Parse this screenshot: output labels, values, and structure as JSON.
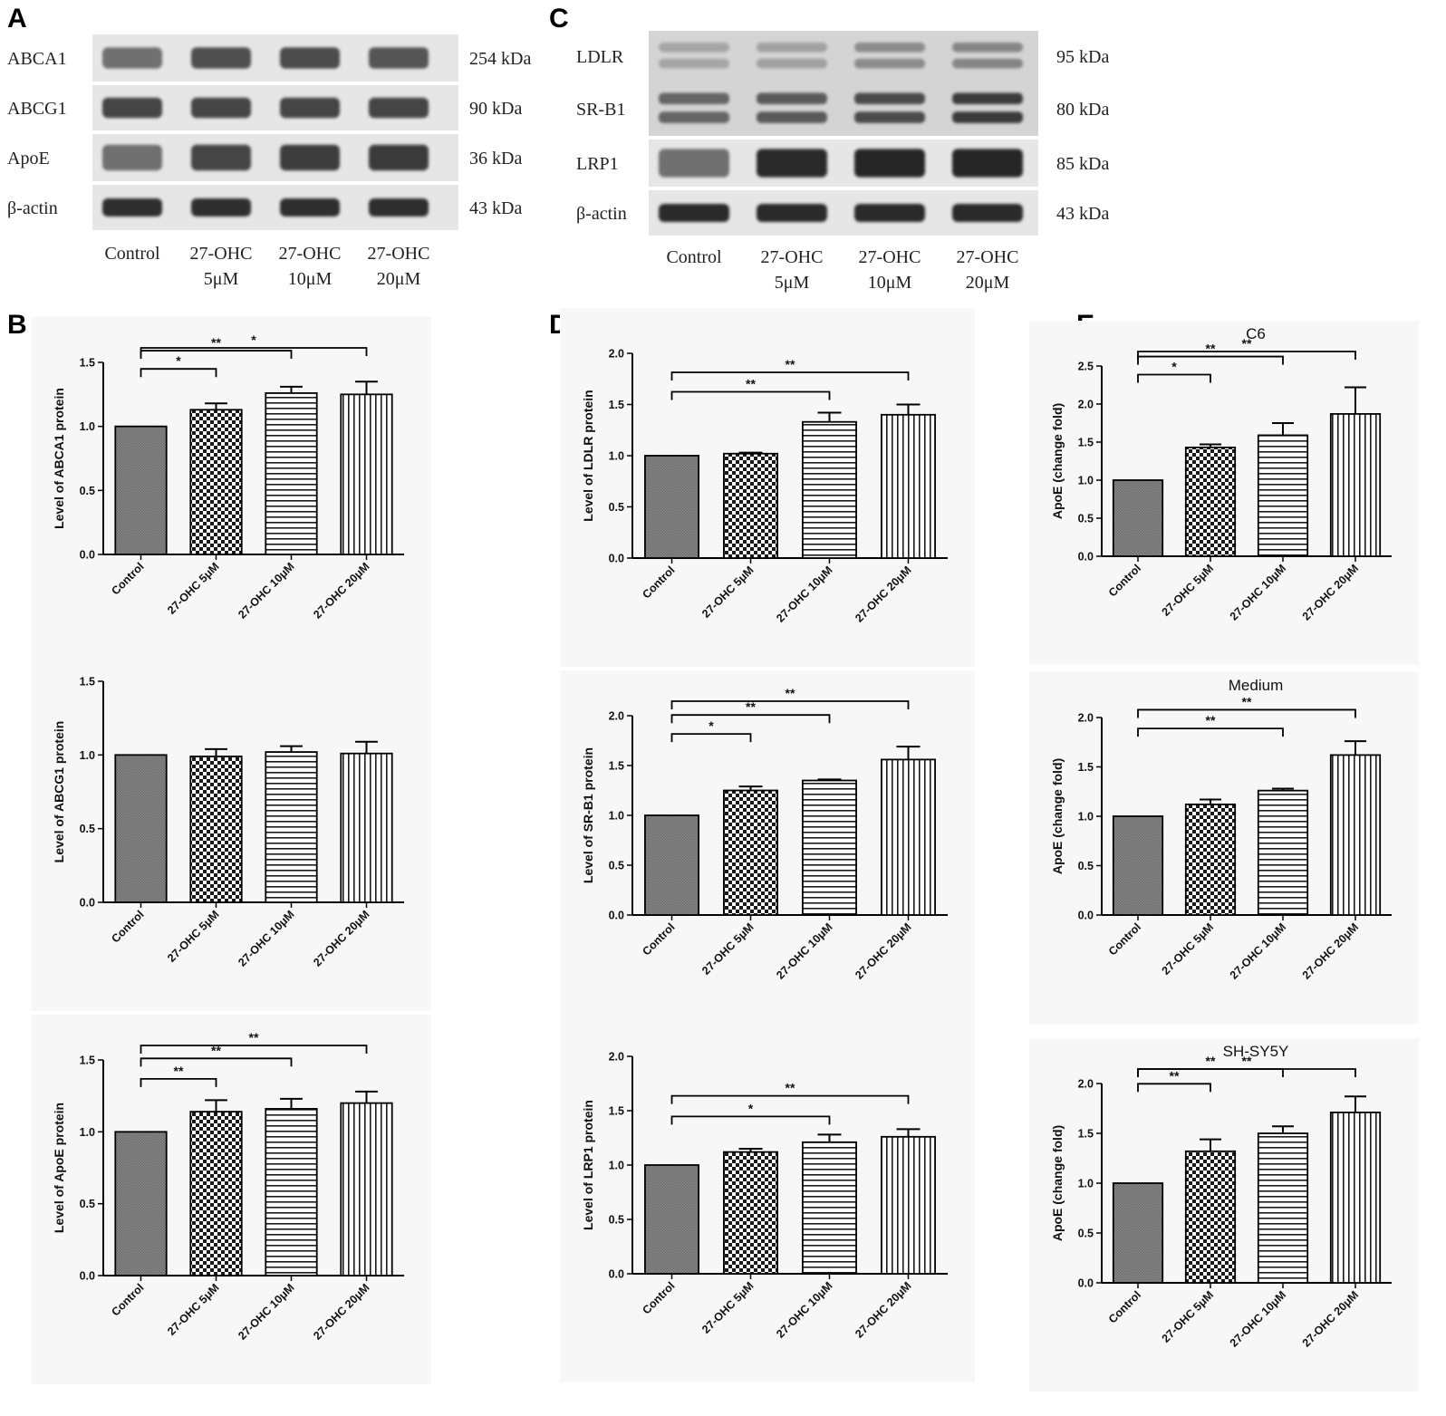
{
  "panel_labels": [
    "A",
    "B",
    "C",
    "D",
    "E"
  ],
  "blots": [
    {
      "label": "A",
      "rows": [
        {
          "name": "ABCA1",
          "size": "254 kDa",
          "intensity": [
            0.55,
            0.7,
            0.72,
            0.68
          ],
          "thickness": 0.45,
          "double": false
        },
        {
          "name": "ABCG1",
          "size": "90 kDa",
          "intensity": [
            0.75,
            0.75,
            0.75,
            0.75
          ],
          "thickness": 0.45,
          "double": false
        },
        {
          "name": "ApoE",
          "size": "36 kDa",
          "intensity": [
            0.55,
            0.75,
            0.78,
            0.8
          ],
          "thickness": 0.55,
          "double": false
        },
        {
          "name": "β-actin",
          "size": "43 kDa",
          "intensity": [
            0.85,
            0.85,
            0.85,
            0.85
          ],
          "thickness": 0.4,
          "double": false
        }
      ],
      "lanes": [
        [
          "Control",
          ""
        ],
        [
          "27-OHC",
          "5μM"
        ],
        [
          "27-OHC",
          "10μM"
        ],
        [
          "27-OHC",
          "20μM"
        ]
      ]
    },
    {
      "label": "C",
      "rows": [
        {
          "name": "LDLR",
          "size": "95 kDa",
          "intensity": [
            0.3,
            0.32,
            0.42,
            0.45
          ],
          "thickness": 0.5,
          "double": true
        },
        {
          "name": "SR-B1",
          "size": "80 kDa",
          "intensity": [
            0.6,
            0.65,
            0.72,
            0.8
          ],
          "thickness": 0.55,
          "double": true
        },
        {
          "name": "LRP1",
          "size": "85 kDa",
          "intensity": [
            0.55,
            0.88,
            0.9,
            0.9
          ],
          "thickness": 0.6,
          "double": false
        },
        {
          "name": "β-actin",
          "size": "43 kDa",
          "intensity": [
            0.88,
            0.88,
            0.88,
            0.88
          ],
          "thickness": 0.4,
          "double": false
        }
      ],
      "lanes": [
        [
          "Control",
          ""
        ],
        [
          "27-OHC",
          "5μM"
        ],
        [
          "27-OHC",
          "10μM"
        ],
        [
          "27-OHC",
          "20μM"
        ]
      ]
    }
  ],
  "chart_data": [
    {
      "panel": "B",
      "type": "bar",
      "title": "",
      "xlabel": "",
      "ylabel": "Level of ABCA1 protein",
      "categories": [
        "Control",
        "27-OHC 5μM",
        "27-OHC 10μM",
        "27-OHC 20μM"
      ],
      "values": [
        1.0,
        1.13,
        1.26,
        1.25
      ],
      "errors": [
        0,
        0.05,
        0.05,
        0.1
      ],
      "ylim": [
        0,
        1.5
      ],
      "yticks": [
        "0.0",
        "0.5",
        "1.0",
        "1.5"
      ],
      "significance": [
        {
          "from": 0,
          "to": 1,
          "label": "*"
        },
        {
          "from": 0,
          "to": 2,
          "label": "**"
        },
        {
          "from": 0,
          "to": 3,
          "label": "*"
        }
      ]
    },
    {
      "panel": "B",
      "type": "bar",
      "title": "",
      "xlabel": "",
      "ylabel": "Level of ABCG1 protein",
      "categories": [
        "Control",
        "27-OHC 5μM",
        "27-OHC 10μM",
        "27-OHC 20μM"
      ],
      "values": [
        1.0,
        0.99,
        1.02,
        1.01
      ],
      "errors": [
        0,
        0.05,
        0.04,
        0.08
      ],
      "ylim": [
        0,
        1.5
      ],
      "yticks": [
        "0.0",
        "0.5",
        "1.0",
        "1.5"
      ],
      "significance": []
    },
    {
      "panel": "B",
      "type": "bar",
      "title": "",
      "xlabel": "",
      "ylabel": "Level of ApoE protein",
      "categories": [
        "Control",
        "27-OHC 5μM",
        "27-OHC 10μM",
        "27-OHC 20μM"
      ],
      "values": [
        1.0,
        1.14,
        1.16,
        1.2
      ],
      "errors": [
        0,
        0.08,
        0.07,
        0.08
      ],
      "ylim": [
        0,
        1.5
      ],
      "yticks": [
        "0.0",
        "0.5",
        "1.0",
        "1.5"
      ],
      "significance": [
        {
          "from": 0,
          "to": 1,
          "label": "**"
        },
        {
          "from": 0,
          "to": 2,
          "label": "**"
        },
        {
          "from": 0,
          "to": 3,
          "label": "**"
        }
      ]
    },
    {
      "panel": "D",
      "type": "bar",
      "title": "",
      "xlabel": "",
      "ylabel": "Level of LDLR protein",
      "categories": [
        "Control",
        "27-OHC 5μM",
        "27-OHC 10μM",
        "27-OHC 20μM"
      ],
      "values": [
        1.0,
        1.02,
        1.33,
        1.4
      ],
      "errors": [
        0,
        0.01,
        0.09,
        0.1
      ],
      "ylim": [
        0,
        2.0
      ],
      "yticks": [
        "0.0",
        "0.5",
        "1.0",
        "1.5",
        "2.0"
      ],
      "significance": [
        {
          "from": 0,
          "to": 2,
          "label": "**"
        },
        {
          "from": 0,
          "to": 3,
          "label": "**"
        }
      ]
    },
    {
      "panel": "D",
      "type": "bar",
      "title": "",
      "xlabel": "",
      "ylabel": "Level of SR-B1 protein",
      "categories": [
        "Control",
        "27-OHC 5μM",
        "27-OHC 10μM",
        "27-OHC 20μM"
      ],
      "values": [
        1.0,
        1.25,
        1.35,
        1.56
      ],
      "errors": [
        0,
        0.04,
        0.01,
        0.13
      ],
      "ylim": [
        0,
        2.0
      ],
      "yticks": [
        "0.0",
        "0.5",
        "1.0",
        "1.5",
        "2.0"
      ],
      "significance": [
        {
          "from": 0,
          "to": 1,
          "label": "*"
        },
        {
          "from": 0,
          "to": 2,
          "label": "**"
        },
        {
          "from": 0,
          "to": 3,
          "label": "**"
        }
      ]
    },
    {
      "panel": "D",
      "type": "bar",
      "title": "",
      "xlabel": "",
      "ylabel": "Level of LRP1 protein",
      "categories": [
        "Control",
        "27-OHC 5μM",
        "27-OHC 10μM",
        "27-OHC 20μM"
      ],
      "values": [
        1.0,
        1.12,
        1.21,
        1.26
      ],
      "errors": [
        0,
        0.03,
        0.07,
        0.07
      ],
      "ylim": [
        0,
        2.0
      ],
      "yticks": [
        "0.0",
        "0.5",
        "1.0",
        "1.5",
        "2.0"
      ],
      "significance": [
        {
          "from": 0,
          "to": 2,
          "label": "*"
        },
        {
          "from": 0,
          "to": 3,
          "label": "**"
        }
      ]
    },
    {
      "panel": "E",
      "type": "bar",
      "title": "C6",
      "xlabel": "",
      "ylabel": "ApoE (change fold)",
      "categories": [
        "Control",
        "27-OHC 5μM",
        "27-OHC 10μM",
        "27-OHC 20μM"
      ],
      "values": [
        1.0,
        1.43,
        1.59,
        1.87
      ],
      "errors": [
        0,
        0.04,
        0.16,
        0.35
      ],
      "ylim": [
        0,
        2.5
      ],
      "yticks": [
        "0.0",
        "0.5",
        "1.0",
        "1.5",
        "2.0",
        "2.5"
      ],
      "significance": [
        {
          "from": 0,
          "to": 1,
          "label": "*"
        },
        {
          "from": 0,
          "to": 2,
          "label": "**"
        },
        {
          "from": 0,
          "to": 3,
          "label": "**"
        }
      ]
    },
    {
      "panel": "E",
      "type": "bar",
      "title": "Medium",
      "xlabel": "",
      "ylabel": "ApoE (change fold)",
      "categories": [
        "Control",
        "27-OHC 5μM",
        "27-OHC 10μM",
        "27-OHC 20μM"
      ],
      "values": [
        1.0,
        1.12,
        1.26,
        1.62
      ],
      "errors": [
        0,
        0.05,
        0.02,
        0.14
      ],
      "ylim": [
        0,
        2.0
      ],
      "yticks": [
        "0.0",
        "0.5",
        "1.0",
        "1.5",
        "2.0"
      ],
      "significance": [
        {
          "from": 0,
          "to": 2,
          "label": "**"
        },
        {
          "from": 0,
          "to": 3,
          "label": "**"
        }
      ]
    },
    {
      "panel": "E",
      "type": "bar",
      "title": "SH-SY5Y",
      "xlabel": "",
      "ylabel": "ApoE (change fold)",
      "categories": [
        "Control",
        "27-OHC 5μM",
        "27-OHC 10μM",
        "27-OHC 20μM"
      ],
      "values": [
        1.0,
        1.32,
        1.5,
        1.71
      ],
      "errors": [
        0,
        0.12,
        0.07,
        0.16
      ],
      "ylim": [
        0,
        2.0
      ],
      "yticks": [
        "0.0",
        "0.5",
        "1.0",
        "1.5",
        "2.0"
      ],
      "significance": [
        {
          "from": 0,
          "to": 1,
          "label": "**"
        },
        {
          "from": 0,
          "to": 2,
          "label": "**"
        },
        {
          "from": 0,
          "to": 3,
          "label": "**"
        }
      ]
    }
  ]
}
